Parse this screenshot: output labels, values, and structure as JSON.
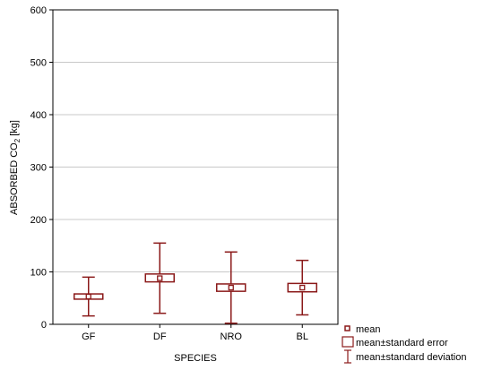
{
  "chart_data": {
    "type": "box",
    "title": "",
    "xlabel": "SPECIES",
    "ylabel_main": "ABSORBED CO",
    "ylabel_sub": "2",
    "ylabel_unit": " [kg]",
    "ylim": [
      0,
      600
    ],
    "yticks": [
      0,
      100,
      200,
      300,
      400,
      500,
      600
    ],
    "grid": "horizontal",
    "color": "#8b1a1a",
    "categories": [
      "GF",
      "DF",
      "NRO",
      "BL"
    ],
    "stats": [
      {
        "mean": 53,
        "se_low": 48,
        "se_high": 58,
        "sd_low": 16,
        "sd_high": 90
      },
      {
        "mean": 88,
        "se_low": 81,
        "se_high": 96,
        "sd_low": 21,
        "sd_high": 155
      },
      {
        "mean": 70,
        "se_low": 63,
        "se_high": 77,
        "sd_low": 2,
        "sd_high": 138
      },
      {
        "mean": 70,
        "se_low": 62,
        "se_high": 78,
        "sd_low": 18,
        "sd_high": 122
      }
    ],
    "legend": {
      "position": "bottom-right",
      "items": [
        "mean",
        "mean±standard error",
        "mean±standard deviation"
      ]
    }
  }
}
